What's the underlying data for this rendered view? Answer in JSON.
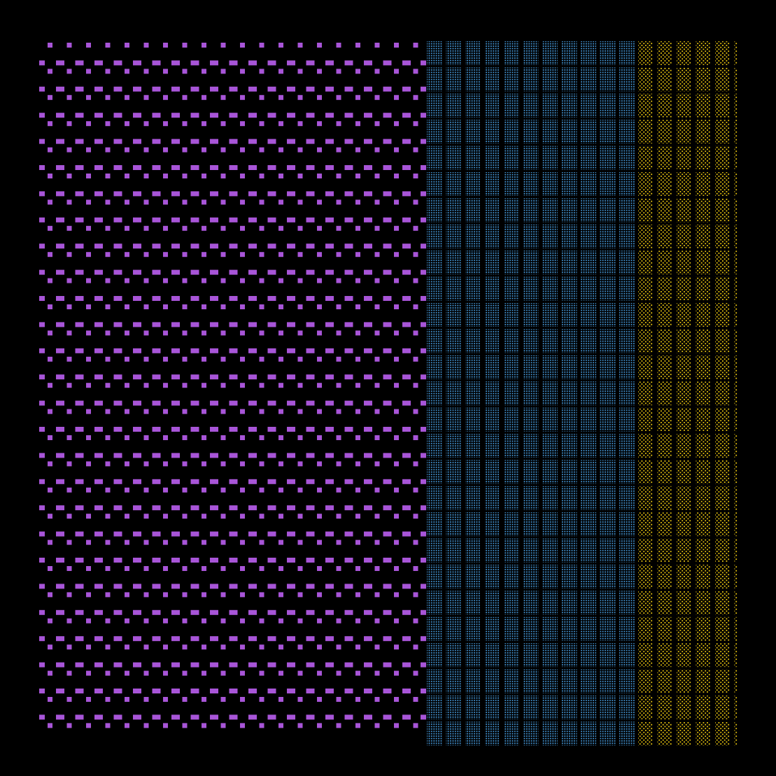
{
  "background": "#000000",
  "regions": [
    {
      "name": "purple-dash-field",
      "color": "#a855d8",
      "style": "alternating small squares and wide bars"
    },
    {
      "name": "blue-dot-blocks",
      "color": "#4aa3e8",
      "style": "dotted blocks grid"
    },
    {
      "name": "yellow-dot-blocks",
      "color": "#e8c410",
      "style": "sparse dotted blocks grid"
    }
  ]
}
